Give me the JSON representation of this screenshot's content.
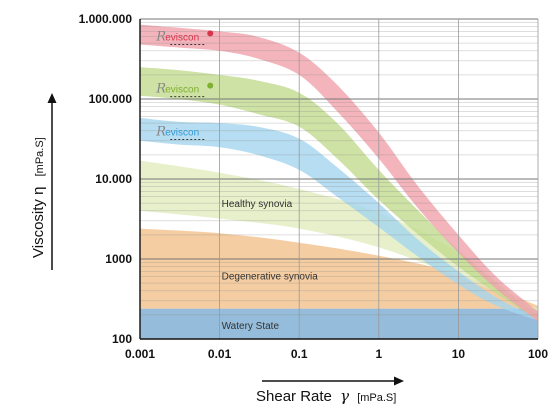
{
  "chart_data": {
    "type": "area",
    "title": "",
    "xlabel": "Shear Rate",
    "xlabel_symbol": "γ",
    "xlabel_unit": "[mPa.S]",
    "ylabel": "Viscosity η",
    "ylabel_unit": "[mPa.S]",
    "xscale": "log",
    "yscale": "log",
    "xlim": [
      0.001,
      100
    ],
    "ylim": [
      100,
      1000000
    ],
    "grid": "on",
    "x_ticks": [
      {
        "v": 0.001,
        "label": "0.001"
      },
      {
        "v": 0.01,
        "label": "0.01"
      },
      {
        "v": 0.1,
        "label": "0.1"
      },
      {
        "v": 1,
        "label": "1"
      },
      {
        "v": 10,
        "label": "10"
      },
      {
        "v": 100,
        "label": "100"
      }
    ],
    "y_ticks": [
      {
        "v": 100,
        "label": "100"
      },
      {
        "v": 1000,
        "label": "1000"
      },
      {
        "v": 10000,
        "label": "10.000"
      },
      {
        "v": 100000,
        "label": "100.000"
      },
      {
        "v": 1000000,
        "label": "1.000.000"
      }
    ],
    "series": [
      {
        "name": "Watery State",
        "color": "#8fb8d8",
        "upper": {
          "x": [
            0.001,
            100
          ],
          "y": [
            240,
            240
          ]
        },
        "lower": {
          "x": [
            0.001,
            100
          ],
          "y": [
            100,
            100
          ]
        }
      },
      {
        "name": "Degenerative synovia",
        "color": "#f3c28e",
        "upper": {
          "x": [
            0.001,
            0.01,
            0.1,
            1,
            10,
            100
          ],
          "y": [
            2400,
            2100,
            1600,
            1100,
            650,
            260
          ]
        },
        "lower": {
          "x": [
            0.001,
            100
          ],
          "y": [
            240,
            240
          ]
        }
      },
      {
        "name": "Healthy synovia",
        "color": "#e2edbf",
        "upper": {
          "x": [
            0.001,
            0.01,
            0.1,
            1,
            10,
            100
          ],
          "y": [
            17000,
            12000,
            7500,
            3800,
            1200,
            200
          ]
        },
        "lower": {
          "x": [
            0.001,
            0.01,
            0.1,
            1,
            10,
            100
          ],
          "y": [
            4000,
            3200,
            2400,
            1400,
            600,
            240
          ]
        }
      },
      {
        "name": "Reviscon",
        "color": "#a6d6ee",
        "upper": {
          "x": [
            0.001,
            0.003,
            0.01,
            0.03,
            0.1,
            0.3,
            1,
            3,
            10,
            30,
            100
          ],
          "y": [
            58000,
            52000,
            50000,
            45000,
            32000,
            14000,
            5000,
            1800,
            700,
            330,
            180
          ]
        },
        "lower": {
          "x": [
            0.001,
            0.003,
            0.01,
            0.03,
            0.1,
            0.3,
            1,
            3,
            10,
            30,
            100
          ],
          "y": [
            30000,
            27000,
            25000,
            20000,
            13000,
            6000,
            2500,
            1100,
            480,
            260,
            170
          ]
        }
      },
      {
        "name": "Reviscon",
        "color": "#c2dc90",
        "upper": {
          "x": [
            0.001,
            0.003,
            0.01,
            0.03,
            0.1,
            0.3,
            1,
            3,
            10,
            30,
            100
          ],
          "y": [
            250000,
            230000,
            200000,
            170000,
            120000,
            50000,
            13000,
            4200,
            1300,
            500,
            200
          ]
        },
        "lower": {
          "x": [
            0.001,
            0.003,
            0.01,
            0.03,
            0.1,
            0.3,
            1,
            3,
            10,
            30,
            100
          ],
          "y": [
            110000,
            100000,
            85000,
            65000,
            45000,
            18000,
            5500,
            2100,
            800,
            370,
            170
          ]
        }
      },
      {
        "name": "Reviscon",
        "color": "#f0a4ad",
        "upper": {
          "x": [
            0.001,
            0.003,
            0.01,
            0.03,
            0.1,
            0.3,
            1,
            3,
            10,
            30,
            100
          ],
          "y": [
            850000,
            780000,
            700000,
            600000,
            380000,
            150000,
            38000,
            8500,
            2000,
            600,
            220
          ]
        },
        "lower": {
          "x": [
            0.001,
            0.003,
            0.01,
            0.03,
            0.1,
            0.3,
            1,
            3,
            10,
            30,
            100
          ],
          "y": [
            480000,
            440000,
            400000,
            320000,
            200000,
            70000,
            18000,
            4500,
            1200,
            420,
            165
          ]
        }
      }
    ],
    "annotations": [
      {
        "text": "Healthy synovia",
        "x": 0.01,
        "y": 5000
      },
      {
        "text": "Degenerative synovia",
        "x": 0.01,
        "y": 620
      },
      {
        "text": "Watery State",
        "x": 0.01,
        "y": 150
      }
    ],
    "logos": [
      {
        "text": "eviscon",
        "color": "#d8344a",
        "x": 0.0016,
        "y": 540000
      },
      {
        "text": "eviscon",
        "color": "#7fb030",
        "x": 0.0016,
        "y": 120000
      },
      {
        "text": "eviscon",
        "color": "#2f9ad6",
        "x": 0.0016,
        "y": 35000
      }
    ]
  }
}
